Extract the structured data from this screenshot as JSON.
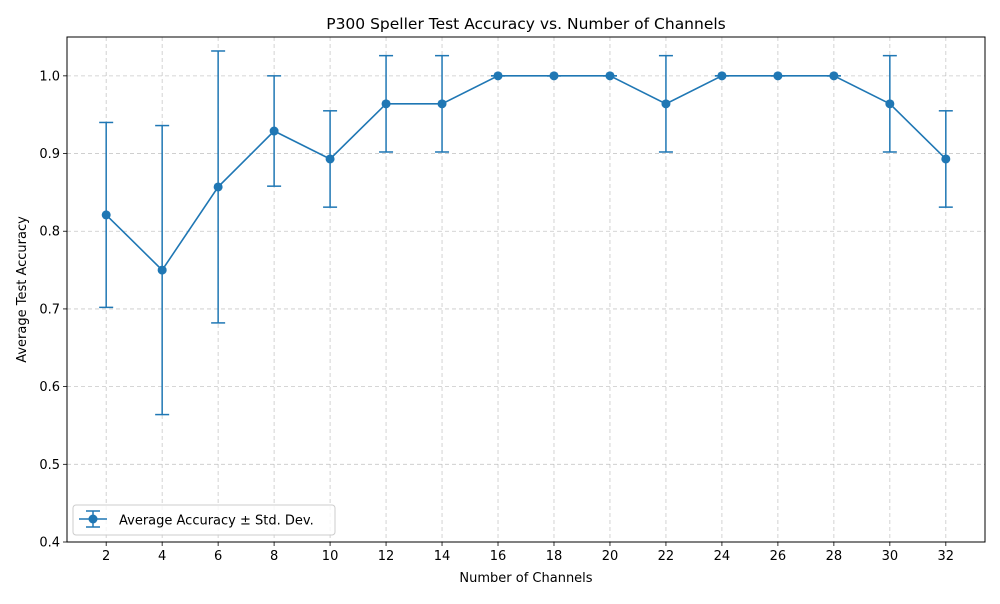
{
  "chart_data": {
    "type": "line",
    "title": "P300 Speller Test Accuracy vs. Number of Channels",
    "xlabel": "Number of Channels",
    "ylabel": "Average Test Accuracy",
    "x": [
      2,
      4,
      6,
      8,
      10,
      12,
      14,
      16,
      18,
      20,
      22,
      24,
      26,
      28,
      30,
      32
    ],
    "x_tick_labels": [
      "2",
      "4",
      "6",
      "8",
      "10",
      "12",
      "14",
      "16",
      "18",
      "20",
      "22",
      "24",
      "26",
      "28",
      "30",
      "32"
    ],
    "y_tick_values": [
      0.4,
      0.5,
      0.6,
      0.7,
      0.8,
      0.9,
      1.0
    ],
    "y_tick_labels": [
      "0.4",
      "0.5",
      "0.6",
      "0.7",
      "0.8",
      "0.9",
      "1.0"
    ],
    "xlim": [
      0.6,
      33.4
    ],
    "ylim": [
      0.4,
      1.05
    ],
    "grid": true,
    "legend_position": "lower-left",
    "series": [
      {
        "name": "Average Accuracy ± Std. Dev.",
        "color": "#1f77b4",
        "marker": "circle",
        "values": [
          0.821,
          0.75,
          0.857,
          0.929,
          0.893,
          0.964,
          0.964,
          1.0,
          1.0,
          1.0,
          0.964,
          1.0,
          1.0,
          1.0,
          0.964,
          0.893
        ],
        "std": [
          0.119,
          0.186,
          0.175,
          0.071,
          0.062,
          0.062,
          0.062,
          0.0,
          0.0,
          0.0,
          0.062,
          0.0,
          0.0,
          0.0,
          0.062,
          0.062
        ]
      }
    ]
  }
}
